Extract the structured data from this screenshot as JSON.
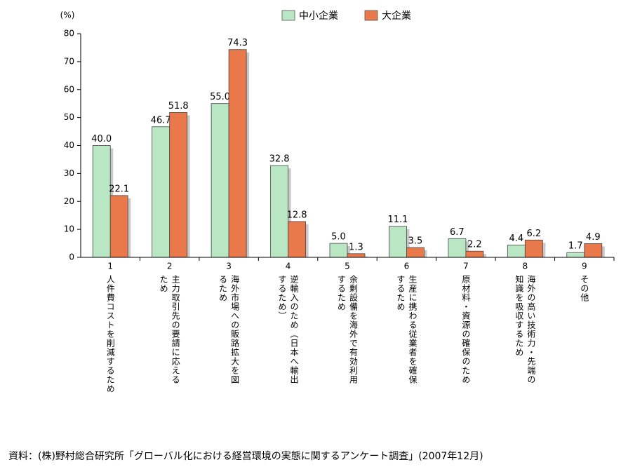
{
  "chart_data": {
    "type": "bar",
    "y_unit": "(%)",
    "categories": [
      "1",
      "2",
      "3",
      "4",
      "5",
      "6",
      "7",
      "8",
      "9"
    ],
    "category_texts": [
      [
        "人件費コストを削減するため"
      ],
      [
        "主力取引先の要請に応える",
        "ため"
      ],
      [
        "海外市場への販路拡大を図",
        "るため"
      ],
      [
        "逆輸入のため（日本へ輸出",
        "するため）"
      ],
      [
        "余剰設備を海外で有効利用",
        "するため"
      ],
      [
        "生産に携わる従業者を確保",
        "するため"
      ],
      [
        "原材料・資源の確保のため"
      ],
      [
        "海外の高い技術力・先端の",
        "知識を吸収するため"
      ],
      [
        "その他"
      ]
    ],
    "series": [
      {
        "name": "中小企業",
        "color": "#b9e6c3",
        "values": [
          40.0,
          46.7,
          55.0,
          32.8,
          5.0,
          11.1,
          6.7,
          4.4,
          1.7
        ],
        "value_labels": [
          "40.0",
          "46.7",
          "55.0",
          "32.8",
          "5.0",
          "11.1",
          "6.7",
          "4.4",
          "1.7"
        ]
      },
      {
        "name": "大企業",
        "color": "#e9794b",
        "values": [
          22.1,
          51.8,
          74.3,
          12.8,
          1.3,
          3.5,
          2.2,
          6.2,
          4.9
        ],
        "value_labels": [
          "22.1",
          "51.8",
          "74.3",
          "12.8",
          "1.3",
          "3.5",
          "2.2",
          "6.2",
          "4.9"
        ]
      }
    ],
    "ylim": [
      0,
      80
    ],
    "yticks": [
      0,
      10,
      20,
      30,
      40,
      50,
      60,
      70,
      80
    ],
    "source": "資料：(株)野村総合研究所「グローバル化における経営環境の実態に関するアンケート調査」(2007年12月)"
  }
}
